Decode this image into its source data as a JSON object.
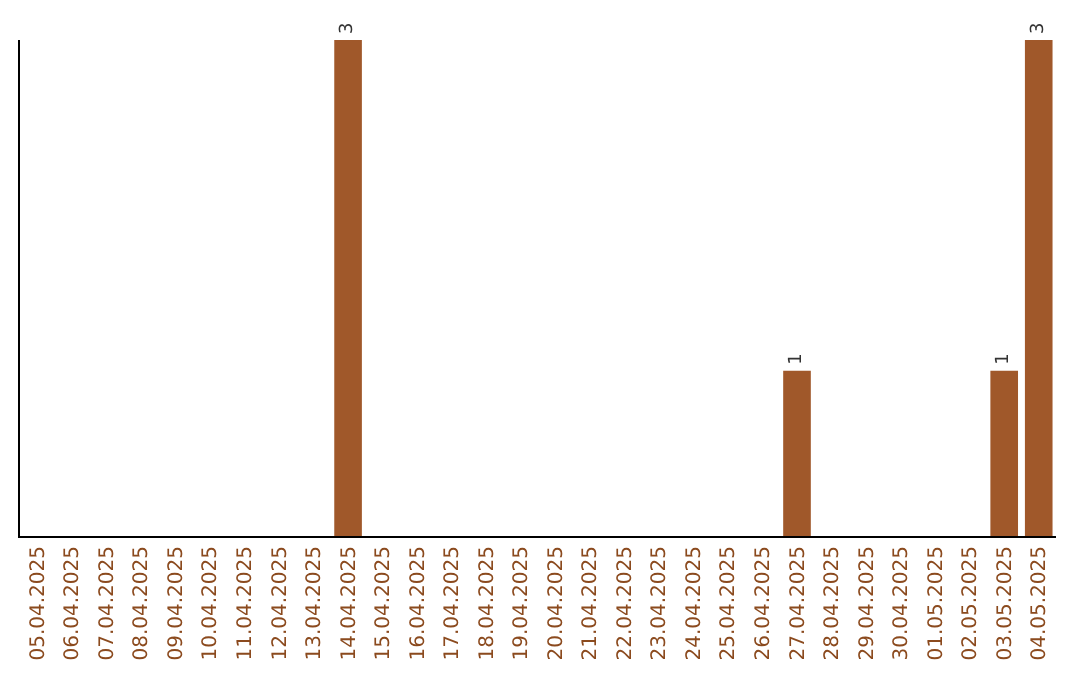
{
  "chart_data": {
    "type": "bar",
    "categories": [
      "05.04.2025",
      "06.04.2025",
      "07.04.2025",
      "08.04.2025",
      "09.04.2025",
      "10.04.2025",
      "11.04.2025",
      "12.04.2025",
      "13.04.2025",
      "14.04.2025",
      "15.04.2025",
      "16.04.2025",
      "17.04.2025",
      "18.04.2025",
      "19.04.2025",
      "20.04.2025",
      "21.04.2025",
      "22.04.2025",
      "23.04.2025",
      "24.04.2025",
      "25.04.2025",
      "26.04.2025",
      "27.04.2025",
      "28.04.2025",
      "29.04.2025",
      "30.04.2025",
      "01.05.2025",
      "02.05.2025",
      "03.05.2025",
      "04.05.2025"
    ],
    "values": [
      0,
      0,
      0,
      0,
      0,
      0,
      0,
      0,
      0,
      3,
      0,
      0,
      0,
      0,
      0,
      0,
      0,
      0,
      0,
      0,
      0,
      0,
      1,
      0,
      0,
      0,
      0,
      0,
      1,
      3
    ],
    "color": "#a0582a",
    "value_labels": [
      null,
      null,
      null,
      null,
      null,
      null,
      null,
      null,
      null,
      "3",
      null,
      null,
      null,
      null,
      null,
      null,
      null,
      null,
      null,
      null,
      null,
      null,
      "1",
      null,
      null,
      null,
      null,
      null,
      "1",
      "3"
    ],
    "ylim": [
      0,
      3
    ],
    "tick_labels": "x",
    "legend": false
  }
}
